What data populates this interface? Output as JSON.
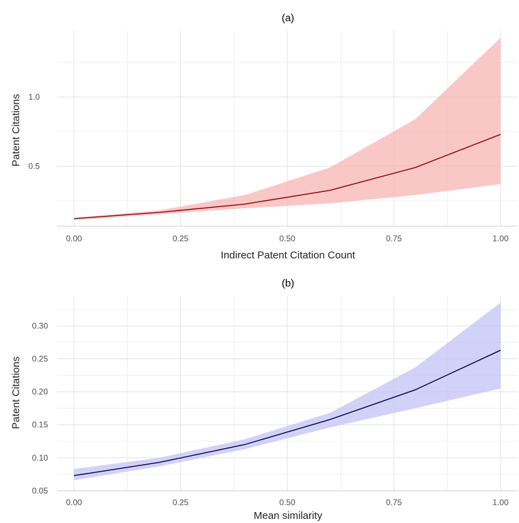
{
  "chart_data": [
    {
      "type": "line",
      "title": "(a)",
      "xlabel": "Indirect Patent Citation Count",
      "ylabel": "Patent Citations",
      "xlim": [
        -0.04,
        1.04
      ],
      "ylim": [
        0.065,
        1.48
      ],
      "xticks": [
        0,
        0.25,
        0.5,
        0.75,
        1
      ],
      "xtick_labels": [
        "0.00",
        "0.25",
        "0.50",
        "0.75",
        "1.00"
      ],
      "yticks": [
        0.5,
        1.0
      ],
      "ytick_labels": [
        "0.5",
        "1.0"
      ],
      "grid": true,
      "line_color": "#8b0000",
      "band_color": "#f8b4b4",
      "series": [
        {
          "x": [
            0,
            0.2,
            0.4,
            0.6,
            0.8,
            1.0
          ],
          "y": [
            0.12,
            0.165,
            0.225,
            0.325,
            0.49,
            0.73
          ],
          "lower": [
            0.11,
            0.15,
            0.195,
            0.23,
            0.29,
            0.37
          ],
          "upper": [
            0.125,
            0.18,
            0.29,
            0.49,
            0.84,
            1.43
          ]
        }
      ]
    },
    {
      "type": "line",
      "title": "(b)",
      "xlabel": "Mean similarity",
      "ylabel": "Patent Citations",
      "xlim": [
        -0.04,
        1.04
      ],
      "ylim": [
        0.05,
        0.345
      ],
      "xticks": [
        0,
        0.25,
        0.5,
        0.75,
        1
      ],
      "xtick_labels": [
        "0.00",
        "0.25",
        "0.50",
        "0.75",
        "1.00"
      ],
      "yticks": [
        0.05,
        0.1,
        0.15,
        0.2,
        0.25,
        0.3
      ],
      "ytick_labels": [
        "0.05",
        "0.10",
        "0.15",
        "0.20",
        "0.25",
        "0.30"
      ],
      "grid": true,
      "line_color": "#00003a",
      "band_color": "#c3c3f5",
      "series": [
        {
          "x": [
            0,
            0.2,
            0.4,
            0.6,
            0.8,
            1.0
          ],
          "y": [
            0.073,
            0.093,
            0.12,
            0.158,
            0.203,
            0.263
          ],
          "lower": [
            0.066,
            0.087,
            0.113,
            0.146,
            0.175,
            0.205
          ],
          "upper": [
            0.083,
            0.1,
            0.128,
            0.168,
            0.237,
            0.335
          ]
        }
      ]
    }
  ]
}
